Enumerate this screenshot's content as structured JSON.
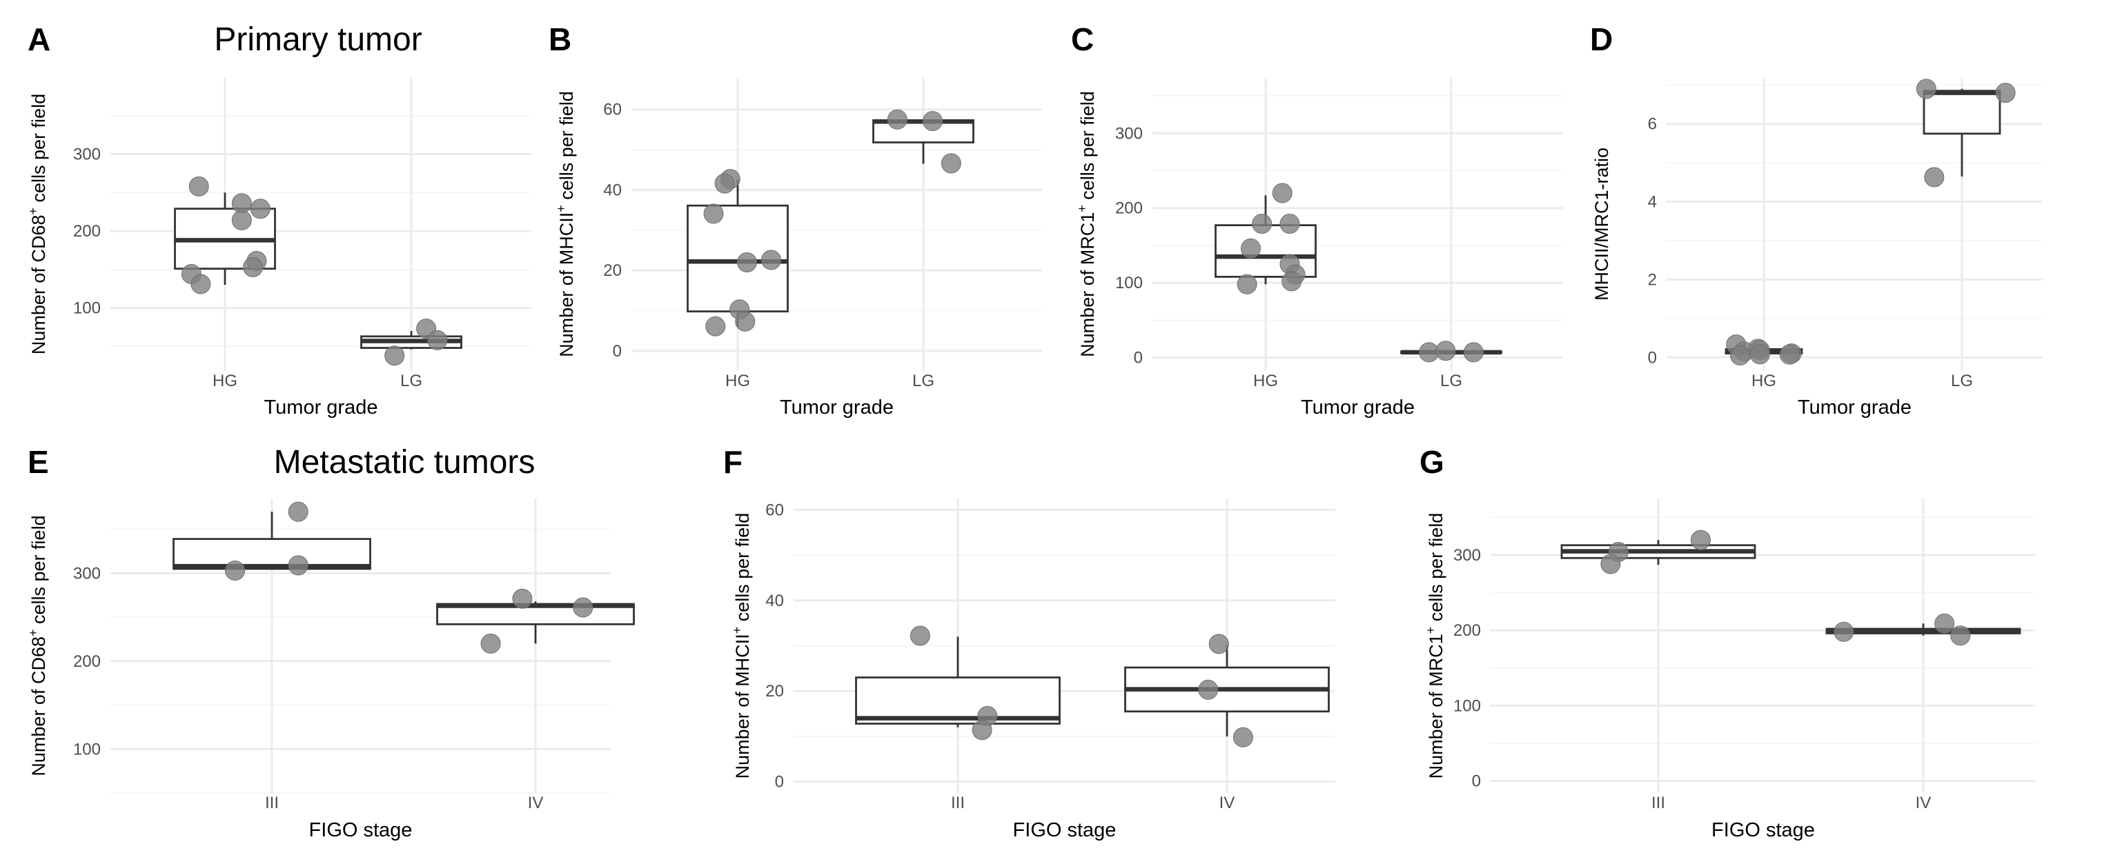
{
  "group_titles": {
    "primary": "Primary tumor",
    "metastatic": "Metastatic tumors"
  },
  "chart_data": [
    {
      "panel": "A",
      "type": "box",
      "title": "Primary tumor",
      "xlabel": "Tumor grade",
      "ylabel": {
        "pre": "Number of CD68",
        "sup": "+",
        "post": " cells per field"
      },
      "ylim": [
        18,
        400
      ],
      "yticks": [
        100,
        200,
        300
      ],
      "categories": [
        "HG",
        "LG"
      ],
      "boxes": [
        {
          "min": 130,
          "q1": 151,
          "median": 188,
          "q3": 229,
          "max": 250
        },
        {
          "min": 46,
          "q1": 48,
          "median": 57,
          "q3": 63,
          "max": 70
        }
      ],
      "points": [
        {
          "cat": 0,
          "jitter": -0.14,
          "y": 258
        },
        {
          "cat": 0,
          "jitter": 0.09,
          "y": 236
        },
        {
          "cat": 0,
          "jitter": 0.19,
          "y": 229
        },
        {
          "cat": 0,
          "jitter": 0.09,
          "y": 214
        },
        {
          "cat": 0,
          "jitter": 0.17,
          "y": 161
        },
        {
          "cat": 0,
          "jitter": 0.15,
          "y": 153
        },
        {
          "cat": 0,
          "jitter": -0.18,
          "y": 144
        },
        {
          "cat": 0,
          "jitter": -0.13,
          "y": 131
        },
        {
          "cat": 1,
          "jitter": 0.08,
          "y": 73
        },
        {
          "cat": 1,
          "jitter": 0.14,
          "y": 58
        },
        {
          "cat": 1,
          "jitter": -0.09,
          "y": 38
        }
      ]
    },
    {
      "panel": "B",
      "type": "box",
      "title": "",
      "xlabel": "Tumor grade",
      "ylabel": {
        "pre": "Number of MHCII",
        "sup": "+",
        "post": " cells per field"
      },
      "ylim": [
        -5,
        68
      ],
      "yticks": [
        0,
        20,
        40,
        60
      ],
      "categories": [
        "HG",
        "LG"
      ],
      "boxes": [
        {
          "min": 6,
          "q1": 9.8,
          "median": 22.2,
          "q3": 36.1,
          "max": 42.5
        },
        {
          "min": 46.5,
          "q1": 51.8,
          "median": 57.0,
          "q3": 57.3,
          "max": 57.5
        }
      ],
      "points": [
        {
          "cat": 0,
          "jitter": -0.04,
          "y": 42.7
        },
        {
          "cat": 0,
          "jitter": -0.07,
          "y": 41.6
        },
        {
          "cat": 0,
          "jitter": -0.13,
          "y": 34.1
        },
        {
          "cat": 0,
          "jitter": 0.18,
          "y": 22.6
        },
        {
          "cat": 0,
          "jitter": 0.05,
          "y": 22.0
        },
        {
          "cat": 0,
          "jitter": 0.01,
          "y": 10.3
        },
        {
          "cat": 0,
          "jitter": 0.04,
          "y": 7.3
        },
        {
          "cat": 0,
          "jitter": -0.12,
          "y": 6.1
        },
        {
          "cat": 1,
          "jitter": -0.14,
          "y": 57.5
        },
        {
          "cat": 1,
          "jitter": 0.05,
          "y": 57.1
        },
        {
          "cat": 1,
          "jitter": 0.15,
          "y": 46.6
        }
      ]
    },
    {
      "panel": "C",
      "type": "box",
      "title": "",
      "xlabel": "Tumor grade",
      "ylabel": {
        "pre": "Number of MRC1",
        "sup": "+",
        "post": " cells per field"
      },
      "ylim": [
        -18,
        375
      ],
      "yticks": [
        0,
        100,
        200,
        300
      ],
      "categories": [
        "HG",
        "LG"
      ],
      "boxes": [
        {
          "min": 98,
          "q1": 108,
          "median": 135,
          "q3": 177,
          "max": 217
        },
        {
          "min": 6,
          "q1": 6,
          "median": 7,
          "q3": 8,
          "max": 9
        }
      ],
      "points": [
        {
          "cat": 0,
          "jitter": 0.09,
          "y": 220
        },
        {
          "cat": 0,
          "jitter": -0.02,
          "y": 179
        },
        {
          "cat": 0,
          "jitter": 0.13,
          "y": 179
        },
        {
          "cat": 0,
          "jitter": -0.08,
          "y": 146
        },
        {
          "cat": 0,
          "jitter": 0.13,
          "y": 125
        },
        {
          "cat": 0,
          "jitter": 0.16,
          "y": 111
        },
        {
          "cat": 0,
          "jitter": 0.14,
          "y": 102
        },
        {
          "cat": 0,
          "jitter": -0.1,
          "y": 98
        },
        {
          "cat": 1,
          "jitter": -0.12,
          "y": 7
        },
        {
          "cat": 1,
          "jitter": -0.03,
          "y": 9
        },
        {
          "cat": 1,
          "jitter": 0.12,
          "y": 7
        }
      ]
    },
    {
      "panel": "D",
      "type": "box",
      "title": "",
      "xlabel": "Tumor grade",
      "ylabel": {
        "pre": "MHCII/MRC1-ratio",
        "sup": "",
        "post": ""
      },
      "ylim": [
        -0.35,
        7.2
      ],
      "yticks": [
        0,
        2,
        4,
        6
      ],
      "categories": [
        "HG",
        "LG"
      ],
      "boxes": [
        {
          "min": 0.05,
          "q1": 0.1,
          "median": 0.16,
          "q3": 0.21,
          "max": 0.3
        },
        {
          "min": 4.65,
          "q1": 5.75,
          "median": 6.8,
          "q3": 6.85,
          "max": 6.9
        }
      ],
      "points": [
        {
          "cat": 0,
          "jitter": -0.14,
          "y": 0.33
        },
        {
          "cat": 0,
          "jitter": -0.03,
          "y": 0.22
        },
        {
          "cat": 0,
          "jitter": -0.02,
          "y": 0.18
        },
        {
          "cat": 0,
          "jitter": -0.1,
          "y": 0.15
        },
        {
          "cat": 0,
          "jitter": 0.14,
          "y": 0.1
        },
        {
          "cat": 0,
          "jitter": -0.02,
          "y": 0.08
        },
        {
          "cat": 0,
          "jitter": -0.12,
          "y": 0.05
        },
        {
          "cat": 0,
          "jitter": 0.13,
          "y": 0.07
        },
        {
          "cat": 1,
          "jitter": -0.18,
          "y": 6.9
        },
        {
          "cat": 1,
          "jitter": 0.22,
          "y": 6.8
        },
        {
          "cat": 1,
          "jitter": -0.14,
          "y": 4.63
        }
      ]
    },
    {
      "panel": "E",
      "type": "box",
      "title": "Metastatic tumors",
      "xlabel": "FIGO stage",
      "ylabel": {
        "pre": "Number of CD68",
        "sup": "+",
        "post": " cells per field"
      },
      "ylim": [
        50,
        385
      ],
      "yticks": [
        100,
        200,
        300
      ],
      "categories": [
        "III",
        "IV"
      ],
      "boxes": [
        {
          "min": 305,
          "q1": 305,
          "median": 308,
          "q3": 339,
          "max": 370
        },
        {
          "min": 220,
          "q1": 242,
          "median": 263,
          "q3": 265,
          "max": 268
        }
      ],
      "points": [
        {
          "cat": 0,
          "jitter": 0.1,
          "y": 370
        },
        {
          "cat": 0,
          "jitter": 0.1,
          "y": 309
        },
        {
          "cat": 0,
          "jitter": -0.14,
          "y": 303
        },
        {
          "cat": 1,
          "jitter": -0.05,
          "y": 271
        },
        {
          "cat": 1,
          "jitter": 0.18,
          "y": 261
        },
        {
          "cat": 1,
          "jitter": -0.17,
          "y": 220
        }
      ]
    },
    {
      "panel": "F",
      "type": "box",
      "title": "",
      "xlabel": "FIGO stage",
      "ylabel": {
        "pre": "Number of MHCII",
        "sup": "+",
        "post": " cells per field"
      },
      "ylim": [
        -2.5,
        62.5
      ],
      "yticks": [
        0,
        20,
        40,
        60
      ],
      "categories": [
        "III",
        "IV"
      ],
      "boxes": [
        {
          "min": 12,
          "q1": 12.8,
          "median": 14,
          "q3": 23,
          "max": 32
        },
        {
          "min": 10,
          "q1": 15.5,
          "median": 20.4,
          "q3": 25.2,
          "max": 30
        }
      ],
      "points": [
        {
          "cat": 0,
          "jitter": -0.14,
          "y": 32.2
        },
        {
          "cat": 0,
          "jitter": 0.11,
          "y": 14.5
        },
        {
          "cat": 0,
          "jitter": 0.09,
          "y": 11.4
        },
        {
          "cat": 1,
          "jitter": -0.03,
          "y": 30.4
        },
        {
          "cat": 1,
          "jitter": -0.07,
          "y": 20.3
        },
        {
          "cat": 1,
          "jitter": 0.06,
          "y": 9.8
        }
      ]
    },
    {
      "panel": "G",
      "type": "box",
      "title": "",
      "xlabel": "FIGO stage",
      "ylabel": {
        "pre": "Number of MRC1",
        "sup": "+",
        "post": " cells per field"
      },
      "ylim": [
        -16,
        375
      ],
      "yticks": [
        0,
        100,
        200,
        300
      ],
      "categories": [
        "III",
        "IV"
      ],
      "boxes": [
        {
          "min": 287,
          "q1": 296,
          "median": 305,
          "q3": 313,
          "max": 320
        },
        {
          "min": 193,
          "q1": 196,
          "median": 199,
          "q3": 202,
          "max": 209
        }
      ],
      "points": [
        {
          "cat": 0,
          "jitter": 0.16,
          "y": 320
        },
        {
          "cat": 0,
          "jitter": -0.15,
          "y": 304
        },
        {
          "cat": 0,
          "jitter": -0.18,
          "y": 288
        },
        {
          "cat": 1,
          "jitter": -0.3,
          "y": 198
        },
        {
          "cat": 1,
          "jitter": 0.08,
          "y": 209
        },
        {
          "cat": 1,
          "jitter": 0.14,
          "y": 193
        }
      ]
    }
  ]
}
